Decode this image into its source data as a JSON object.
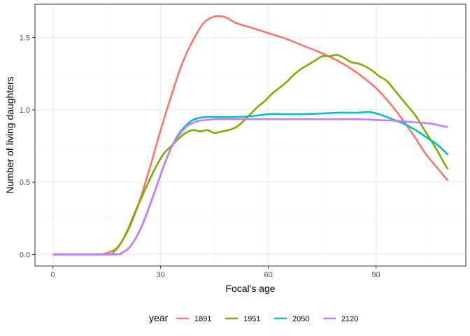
{
  "chart_data": {
    "type": "line",
    "xlabel": "Focal's age",
    "ylabel": "Number of living daughters",
    "xlim": [
      -5,
      115
    ],
    "ylim": [
      -0.08,
      1.73
    ],
    "x_ticks": [
      0,
      30,
      60,
      90
    ],
    "x_tick_labels": [
      "0",
      "30",
      "60",
      "90"
    ],
    "y_ticks": [
      0.0,
      0.5,
      1.0,
      1.5
    ],
    "y_tick_labels": [
      "0.0",
      "0.5",
      "1.0",
      "1.5"
    ],
    "grid": true,
    "legend": {
      "title": "year",
      "position": "bottom"
    },
    "series": [
      {
        "name": "1891",
        "color": "#F8766D",
        "points": [
          [
            0,
            0
          ],
          [
            12,
            0
          ],
          [
            15,
            0.01
          ],
          [
            18,
            0.05
          ],
          [
            21,
            0.17
          ],
          [
            24,
            0.36
          ],
          [
            27,
            0.6
          ],
          [
            30,
            0.86
          ],
          [
            33,
            1.1
          ],
          [
            36,
            1.32
          ],
          [
            39,
            1.48
          ],
          [
            42,
            1.6
          ],
          [
            45,
            1.645
          ],
          [
            48,
            1.64
          ],
          [
            51,
            1.6
          ],
          [
            55,
            1.57
          ],
          [
            60,
            1.53
          ],
          [
            65,
            1.49
          ],
          [
            70,
            1.44
          ],
          [
            75,
            1.39
          ],
          [
            80,
            1.33
          ],
          [
            85,
            1.25
          ],
          [
            90,
            1.15
          ],
          [
            95,
            1.01
          ],
          [
            100,
            0.84
          ],
          [
            104,
            0.69
          ],
          [
            107,
            0.6
          ],
          [
            110,
            0.51
          ]
        ]
      },
      {
        "name": "1951",
        "color": "#7CAE00",
        "points": [
          [
            0,
            0
          ],
          [
            15,
            0
          ],
          [
            17,
            0.02
          ],
          [
            19,
            0.08
          ],
          [
            21,
            0.18
          ],
          [
            23,
            0.3
          ],
          [
            25,
            0.41
          ],
          [
            27,
            0.52
          ],
          [
            29,
            0.62
          ],
          [
            31,
            0.7
          ],
          [
            33,
            0.75
          ],
          [
            35,
            0.8
          ],
          [
            37,
            0.84
          ],
          [
            39,
            0.86
          ],
          [
            41,
            0.85
          ],
          [
            43,
            0.86
          ],
          [
            45,
            0.84
          ],
          [
            47,
            0.85
          ],
          [
            49,
            0.86
          ],
          [
            51,
            0.88
          ],
          [
            53,
            0.92
          ],
          [
            55,
            0.97
          ],
          [
            57,
            1.02
          ],
          [
            59,
            1.06
          ],
          [
            61,
            1.11
          ],
          [
            63,
            1.15
          ],
          [
            65,
            1.19
          ],
          [
            67,
            1.24
          ],
          [
            69,
            1.28
          ],
          [
            71,
            1.31
          ],
          [
            73,
            1.34
          ],
          [
            75,
            1.37
          ],
          [
            77,
            1.37
          ],
          [
            79,
            1.38
          ],
          [
            81,
            1.36
          ],
          [
            83,
            1.33
          ],
          [
            85,
            1.32
          ],
          [
            87,
            1.3
          ],
          [
            89,
            1.27
          ],
          [
            91,
            1.23
          ],
          [
            93,
            1.2
          ],
          [
            95,
            1.14
          ],
          [
            97,
            1.08
          ],
          [
            99,
            1.02
          ],
          [
            101,
            0.96
          ],
          [
            103,
            0.88
          ],
          [
            105,
            0.8
          ],
          [
            107,
            0.72
          ],
          [
            109,
            0.63
          ],
          [
            110,
            0.59
          ]
        ]
      },
      {
        "name": "2050",
        "color": "#00BFC4",
        "points": [
          [
            0,
            0
          ],
          [
            17,
            0
          ],
          [
            19,
            0.01
          ],
          [
            21,
            0.04
          ],
          [
            23,
            0.11
          ],
          [
            25,
            0.21
          ],
          [
            27,
            0.34
          ],
          [
            29,
            0.48
          ],
          [
            31,
            0.62
          ],
          [
            33,
            0.74
          ],
          [
            35,
            0.83
          ],
          [
            37,
            0.89
          ],
          [
            39,
            0.93
          ],
          [
            41,
            0.945
          ],
          [
            43,
            0.95
          ],
          [
            45,
            0.95
          ],
          [
            50,
            0.95
          ],
          [
            55,
            0.955
          ],
          [
            60,
            0.97
          ],
          [
            65,
            0.97
          ],
          [
            70,
            0.97
          ],
          [
            75,
            0.975
          ],
          [
            80,
            0.98
          ],
          [
            85,
            0.98
          ],
          [
            88,
            0.985
          ],
          [
            90,
            0.975
          ],
          [
            92,
            0.96
          ],
          [
            95,
            0.93
          ],
          [
            98,
            0.9
          ],
          [
            101,
            0.86
          ],
          [
            104,
            0.81
          ],
          [
            107,
            0.76
          ],
          [
            110,
            0.69
          ]
        ]
      },
      {
        "name": "2120",
        "color": "#C77CFF",
        "points": [
          [
            0,
            0
          ],
          [
            17,
            0
          ],
          [
            19,
            0.01
          ],
          [
            21,
            0.04
          ],
          [
            23,
            0.11
          ],
          [
            25,
            0.21
          ],
          [
            27,
            0.34
          ],
          [
            29,
            0.48
          ],
          [
            31,
            0.62
          ],
          [
            33,
            0.74
          ],
          [
            35,
            0.82
          ],
          [
            37,
            0.88
          ],
          [
            39,
            0.91
          ],
          [
            41,
            0.925
          ],
          [
            43,
            0.93
          ],
          [
            45,
            0.935
          ],
          [
            50,
            0.935
          ],
          [
            60,
            0.935
          ],
          [
            70,
            0.935
          ],
          [
            80,
            0.935
          ],
          [
            85,
            0.935
          ],
          [
            90,
            0.93
          ],
          [
            95,
            0.925
          ],
          [
            100,
            0.915
          ],
          [
            105,
            0.905
          ],
          [
            108,
            0.89
          ],
          [
            110,
            0.88
          ]
        ]
      }
    ]
  }
}
